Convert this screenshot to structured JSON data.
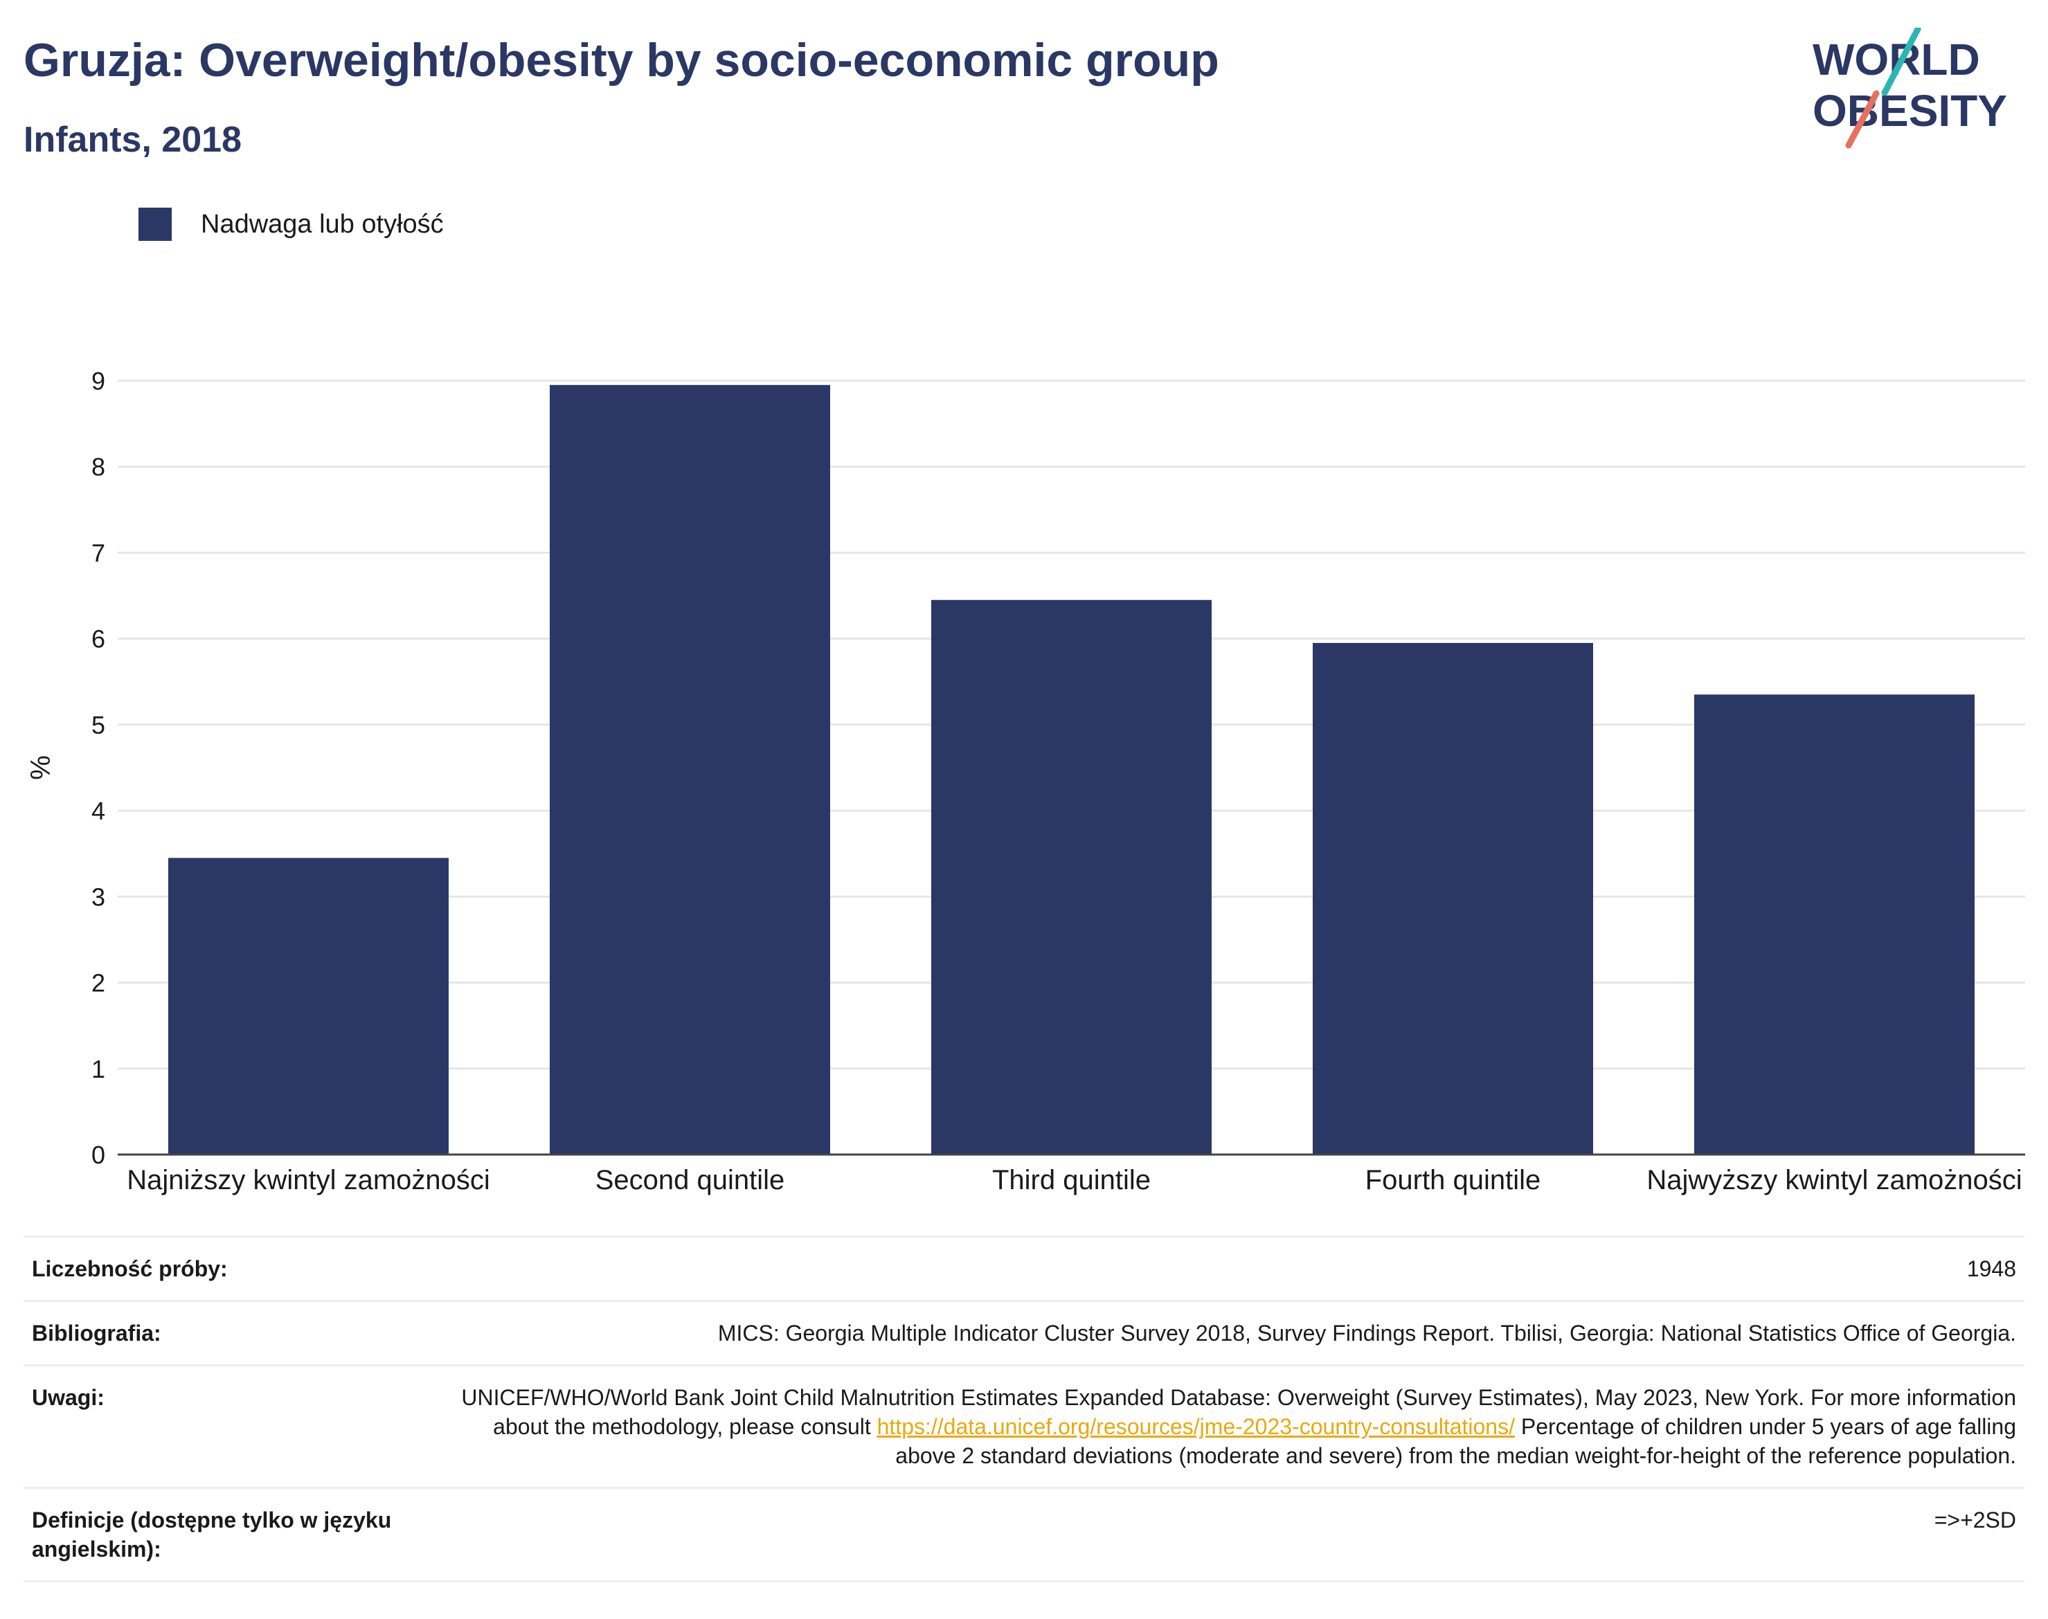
{
  "title": "Gruzja: Overweight/obesity by socio-economic group",
  "subtitle": "Infants, 2018",
  "logo": {
    "line1": "WORLD",
    "line2": "OBESITY"
  },
  "colors": {
    "bar": "#2b3764",
    "title": "#2b3764",
    "link": "#e8a90f",
    "logo_teal": "#2cb5b5",
    "logo_coral": "#e8705f"
  },
  "legend": {
    "label": "Nadwaga lub otyłość"
  },
  "chart_data": {
    "type": "bar",
    "categories": [
      "Najniższy kwintyl zamożności",
      "Second quintile",
      "Third quintile",
      "Fourth quintile",
      "Najwyższy kwintyl zamożności"
    ],
    "series": [
      {
        "name": "Nadwaga lub otyłość",
        "values": [
          3.45,
          8.95,
          6.45,
          5.95,
          5.35
        ]
      }
    ],
    "ylabel": "%",
    "ylim": [
      0,
      9
    ],
    "yticks": [
      0,
      1,
      2,
      3,
      4,
      5,
      6,
      7,
      8,
      9
    ],
    "grid": true,
    "legend_position": "top-left"
  },
  "meta": {
    "sample_label": "Liczebność próby:",
    "sample_value": "1948",
    "bib_label": "Bibliografia:",
    "bib_value": "MICS: Georgia Multiple Indicator Cluster Survey 2018, Survey Findings Report. Tbilisi, Georgia: National Statistics Office of Georgia.",
    "notes_label": "Uwagi:",
    "notes_text1": "UNICEF/WHO/World Bank Joint Child Malnutrition Estimates Expanded Database: Overweight (Survey Estimates), May 2023, New York. For more information about the methodology, please consult ",
    "notes_link": "https://data.unicef.org/resources/jme-2023-country-consultations/",
    "notes_text2": " Percentage of children under 5 years of age falling above 2 standard deviations (moderate and severe) from the median weight-for-height of the reference population.",
    "def_label": "Definicje (dostępne tylko w języku angielskim):",
    "def_value": "=>+2SD"
  }
}
